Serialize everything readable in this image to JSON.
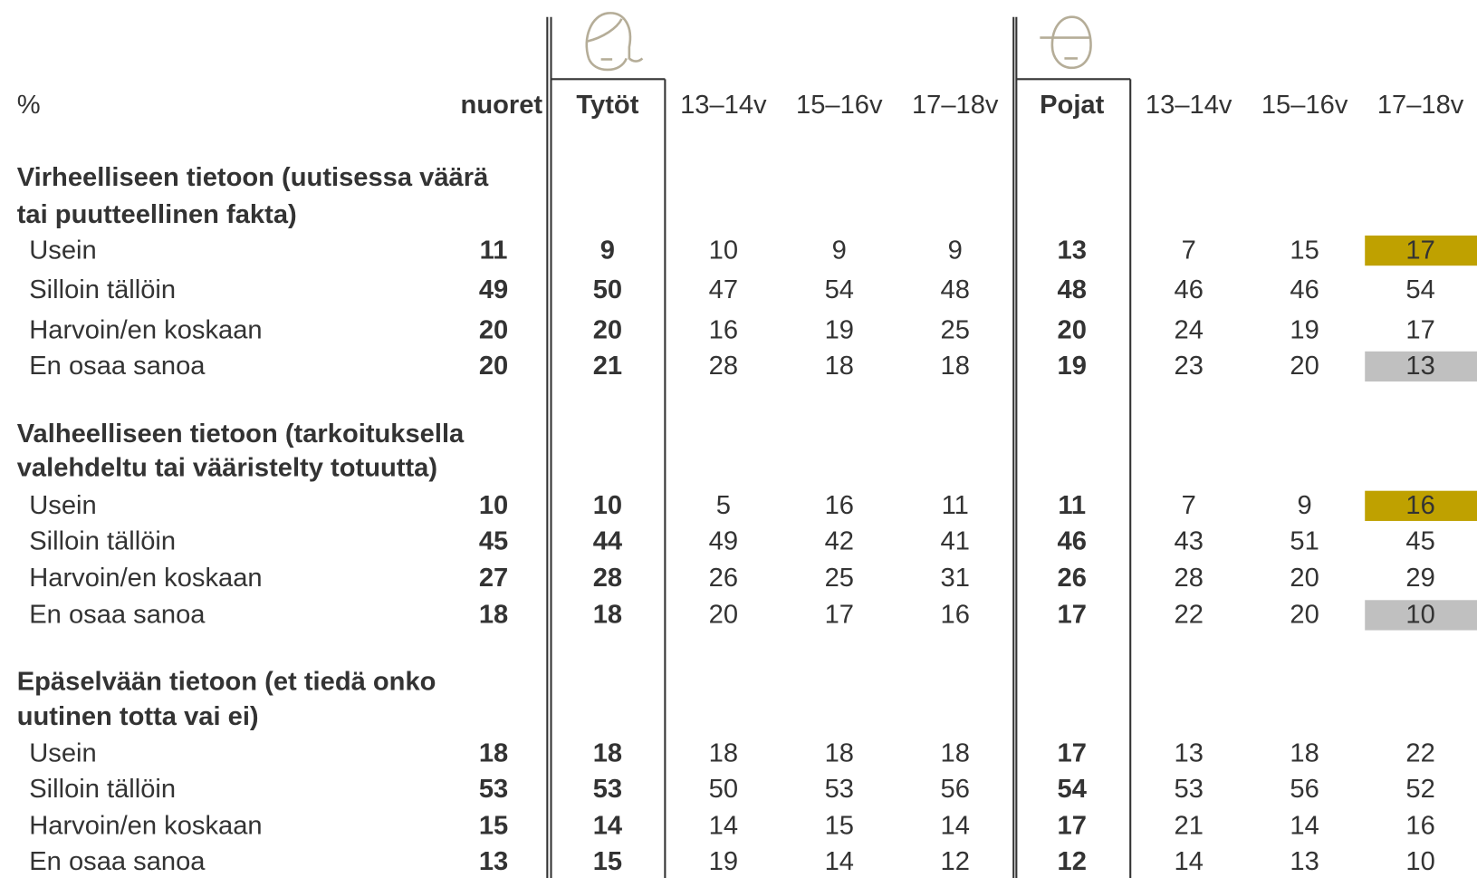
{
  "header": {
    "unit": "%",
    "columns": [
      "nuoret",
      "Tytöt",
      "13–14v",
      "15–16v",
      "17–18v",
      "Pojat",
      "13–14v",
      "15–16v",
      "17–18v"
    ]
  },
  "sections": [
    {
      "title": [
        "Virheelliseen tietoon (uutisessa väärä",
        "tai puutteellinen fakta)"
      ],
      "rows": [
        {
          "label": "Usein",
          "values": [
            11,
            9,
            10,
            9,
            9,
            13,
            7,
            15,
            17
          ],
          "colors": [
            null,
            null,
            null,
            null,
            null,
            null,
            null,
            null,
            "#bfa100"
          ]
        },
        {
          "label": "Silloin tällöin",
          "values": [
            49,
            50,
            47,
            54,
            48,
            48,
            46,
            46,
            54
          ]
        },
        {
          "label": "Harvoin/en koskaan",
          "values": [
            20,
            20,
            16,
            19,
            25,
            20,
            24,
            19,
            17
          ]
        },
        {
          "label": "En osaa sanoa",
          "values": [
            20,
            21,
            28,
            18,
            18,
            19,
            23,
            20,
            13
          ],
          "colors": [
            null,
            null,
            null,
            null,
            null,
            null,
            null,
            null,
            "#c0c0c0"
          ]
        }
      ]
    },
    {
      "title": [
        "Valheelliseen tietoon (tarkoituksella",
        "valehdeltu tai vääristelty totuutta)"
      ],
      "rows": [
        {
          "label": "Usein",
          "values": [
            10,
            10,
            5,
            16,
            11,
            11,
            7,
            9,
            16
          ],
          "colors": [
            null,
            null,
            null,
            null,
            null,
            null,
            null,
            null,
            "#bfa100"
          ]
        },
        {
          "label": "Silloin tällöin",
          "values": [
            45,
            44,
            49,
            42,
            41,
            46,
            43,
            51,
            45
          ]
        },
        {
          "label": "Harvoin/en koskaan",
          "values": [
            27,
            28,
            26,
            25,
            31,
            26,
            28,
            20,
            29
          ]
        },
        {
          "label": "En osaa sanoa",
          "values": [
            18,
            18,
            20,
            17,
            16,
            17,
            22,
            20,
            10
          ],
          "colors": [
            null,
            null,
            null,
            null,
            null,
            null,
            null,
            null,
            "#c0c0c0"
          ]
        }
      ]
    },
    {
      "title": [
        "Epäselvään tietoon (et tiedä onko",
        "uutinen totta vai ei)"
      ],
      "rows": [
        {
          "label": "Usein",
          "values": [
            18,
            18,
            18,
            18,
            18,
            17,
            13,
            18,
            22
          ]
        },
        {
          "label": "Silloin tällöin",
          "values": [
            53,
            53,
            50,
            53,
            56,
            54,
            53,
            56,
            52
          ]
        },
        {
          "label": "Harvoin/en koskaan",
          "values": [
            15,
            14,
            14,
            15,
            14,
            17,
            21,
            14,
            16
          ]
        },
        {
          "label": "En osaa sanoa",
          "values": [
            13,
            15,
            19,
            14,
            12,
            12,
            14,
            13,
            10
          ]
        }
      ]
    }
  ]
}
